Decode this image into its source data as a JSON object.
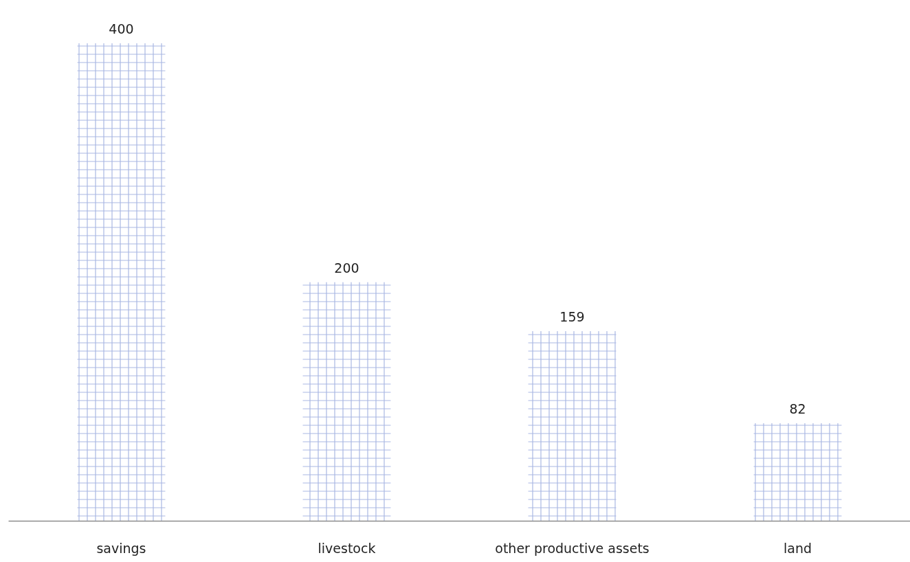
{
  "chart_data": {
    "type": "bar",
    "categories": [
      "savings",
      "livestock",
      "other productive assets",
      "land"
    ],
    "values": [
      400,
      200,
      159,
      82
    ],
    "color": "#a9b7e3",
    "data_labels": true,
    "grid": false
  }
}
